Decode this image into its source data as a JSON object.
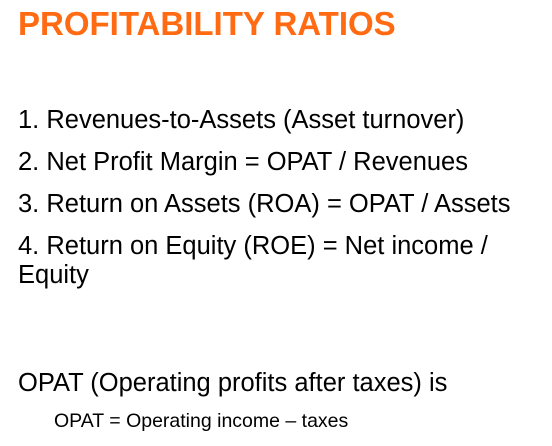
{
  "slide": {
    "title": "PROFITABILITY RATIOS",
    "title_color": "#FF6A13",
    "items": [
      "1. Revenues-to-Assets (Asset turnover)",
      "2. Net Profit Margin = OPAT / Revenues",
      "3. Return on Assets (ROA) = OPAT / Assets",
      "4. Return on Equity (ROE) = Net income / Equity"
    ],
    "definition": "OPAT (Operating profits after taxes) is",
    "formula": "OPAT = Operating income – taxes"
  }
}
